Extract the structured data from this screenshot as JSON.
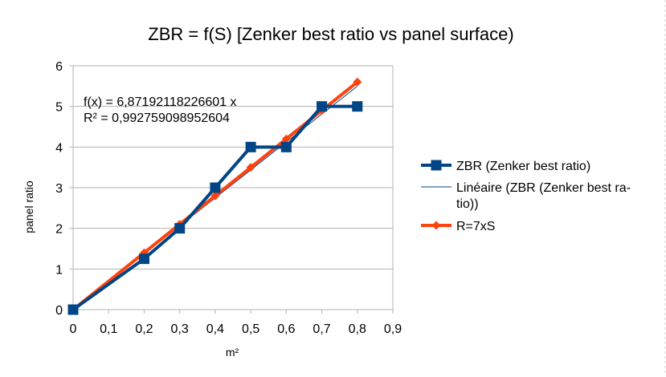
{
  "chart_data": {
    "type": "line",
    "title": "ZBR = f(S) [Zenker best ratio vs panel surface)",
    "xlabel": "m²",
    "ylabel": "panel ratio",
    "xlim": [
      0,
      0.9
    ],
    "ylim": [
      0,
      6
    ],
    "x_ticks": [
      "0",
      "0,1",
      "0,2",
      "0,3",
      "0,4",
      "0,5",
      "0,6",
      "0,7",
      "0,8",
      "0,9"
    ],
    "y_ticks": [
      "0",
      "1",
      "2",
      "3",
      "4",
      "5",
      "6"
    ],
    "grid": "horizontal",
    "legend_position": "right",
    "series": [
      {
        "name": "ZBR (Zenker best ratio)",
        "color": "#004586",
        "marker": "square",
        "x": [
          0,
          0.2,
          0.3,
          0.4,
          0.5,
          0.6,
          0.7,
          0.8
        ],
        "y": [
          0,
          1.25,
          2,
          3,
          4,
          4,
          5,
          5
        ]
      },
      {
        "name_lines": [
          "Linéaire (ZBR (Zenker best ra-",
          "tio))"
        ],
        "color": "#004586",
        "type": "trendline",
        "slope": 6.87192118226601,
        "intercept": 0
      },
      {
        "name": "R=7xS",
        "color": "#ff420e",
        "marker": "diamond",
        "x": [
          0,
          0.2,
          0.3,
          0.4,
          0.5,
          0.6,
          0.7,
          0.8
        ],
        "y": [
          0,
          1.4,
          2.1,
          2.8,
          3.5,
          4.2,
          4.9,
          5.6
        ]
      }
    ],
    "annotations": [
      "f(x) = 6,87192118226601 x",
      "R² = 0,992759098952604"
    ]
  }
}
